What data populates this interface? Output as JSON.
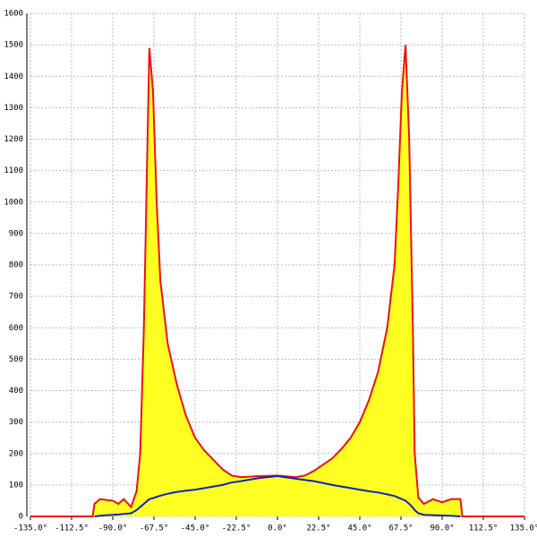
{
  "chart_data": {
    "type": "area",
    "x": [
      -135,
      -101,
      -100,
      -97,
      -93,
      -90,
      -87,
      -84,
      -80,
      -77,
      -75,
      -73,
      -71,
      -70,
      -68,
      -66,
      -64,
      -60,
      -55,
      -50,
      -45,
      -40,
      -35,
      -30,
      -25,
      -20,
      -10,
      0,
      10,
      15,
      20,
      25,
      30,
      35,
      40,
      45,
      50,
      55,
      60,
      64,
      66,
      68,
      70,
      72,
      74,
      75,
      77,
      80,
      85,
      90,
      95,
      100,
      101,
      135
    ],
    "series": [
      {
        "color": "#ee1111",
        "fill": "#ffff22",
        "values": [
          0,
          0,
          40,
          55,
          52,
          50,
          40,
          55,
          30,
          80,
          200,
          600,
          1200,
          1490,
          1350,
          1000,
          750,
          550,
          420,
          320,
          250,
          210,
          180,
          150,
          130,
          125,
          128,
          130,
          125,
          130,
          145,
          165,
          185,
          215,
          250,
          300,
          370,
          460,
          600,
          800,
          1050,
          1350,
          1500,
          1200,
          600,
          200,
          60,
          40,
          55,
          45,
          55,
          55,
          0,
          0
        ]
      },
      {
        "color": "#1122bb",
        "values": [
          null,
          null,
          0,
          2,
          4,
          5,
          6,
          8,
          10,
          20,
          30,
          40,
          50,
          55,
          58,
          62,
          66,
          72,
          78,
          82,
          85,
          90,
          95,
          100,
          108,
          112,
          122,
          128,
          120,
          116,
          112,
          106,
          100,
          95,
          90,
          85,
          80,
          76,
          70,
          65,
          60,
          55,
          50,
          40,
          28,
          20,
          10,
          5,
          4,
          3,
          2,
          0,
          null,
          null
        ]
      }
    ],
    "xlim": [
      -135,
      135
    ],
    "xticks": [
      {
        "value": -135,
        "label": "-135.0°"
      },
      {
        "value": -112.5,
        "label": "-112.5°"
      },
      {
        "value": -90,
        "label": "-90.0°"
      },
      {
        "value": -67.5,
        "label": "-67.5°"
      },
      {
        "value": -45,
        "label": "-45.0°"
      },
      {
        "value": -22.5,
        "label": "-22.5°"
      },
      {
        "value": 0,
        "label": "0.0°"
      },
      {
        "value": 22.5,
        "label": "22.5°"
      },
      {
        "value": 45,
        "label": "45.0°"
      },
      {
        "value": 67.5,
        "label": "67.5°"
      },
      {
        "value": 90,
        "label": "90.0°"
      },
      {
        "value": 112.5,
        "label": "112.5°"
      },
      {
        "value": 135,
        "label": "135.0°"
      }
    ],
    "ylim": [
      0,
      1600
    ],
    "yticks": [
      0,
      100,
      200,
      300,
      400,
      500,
      600,
      700,
      800,
      900,
      1000,
      1100,
      1200,
      1300,
      1400,
      1500,
      1600
    ],
    "grid": true
  }
}
